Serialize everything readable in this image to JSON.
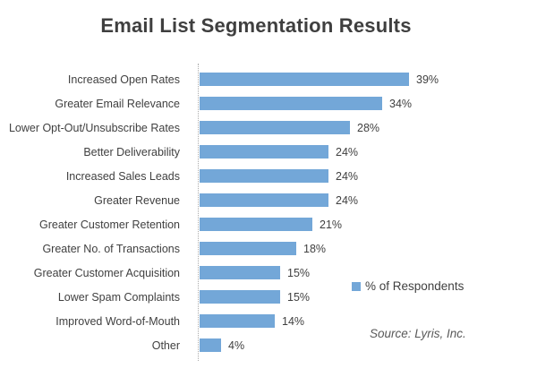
{
  "title": "Email List Segmentation Results",
  "legend": {
    "label": "% of Respondents"
  },
  "source": "Source: Lyris, Inc.",
  "colors": {
    "bar": "#73a7d8",
    "title_text": "#3f3f3f",
    "label_text": "#404040",
    "value_text": "#404040",
    "source_text": "#595959",
    "axis_line": "#ababab",
    "background": "#ffffff"
  },
  "chart_data": {
    "type": "bar",
    "orientation": "horizontal",
    "title": "Email List Segmentation Results",
    "categories": [
      "Increased Open Rates",
      "Greater Email Relevance",
      "Lower Opt-Out/Unsubscribe Rates",
      "Better Deliverability",
      "Increased Sales Leads",
      "Greater Revenue",
      "Greater Customer Retention",
      "Greater No. of Transactions",
      "Greater Customer Acquisition",
      "Lower Spam Complaints",
      "Improved Word-of-Mouth",
      "Other"
    ],
    "values": [
      39,
      34,
      28,
      24,
      24,
      24,
      21,
      18,
      15,
      15,
      14,
      4
    ],
    "value_suffix": "%",
    "xlabel": "",
    "ylabel": "",
    "xlim": [
      0,
      40
    ],
    "grid": false,
    "data_labels": true,
    "legend_entries": [
      "% of Respondents"
    ],
    "legend_position": "right",
    "annotations": [
      "Source: Lyris, Inc."
    ]
  }
}
